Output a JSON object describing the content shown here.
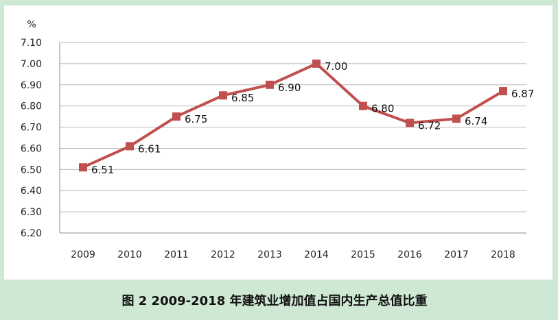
{
  "chart_data": {
    "type": "line",
    "title": "图 2   2009-2018 年建筑业增加值占国内生产总值比重",
    "unit_label": "%",
    "categories": [
      "2009",
      "2010",
      "2011",
      "2012",
      "2013",
      "2014",
      "2015",
      "2016",
      "2017",
      "2018"
    ],
    "values": [
      6.51,
      6.61,
      6.75,
      6.85,
      6.9,
      7.0,
      6.8,
      6.72,
      6.74,
      6.87
    ],
    "value_labels": [
      "6.51",
      "6.61",
      "6.75",
      "6.85",
      "6.90",
      "7.00",
      "6.80",
      "6.72",
      "6.74",
      "6.87"
    ],
    "ylim": [
      6.2,
      7.1
    ],
    "yticks": [
      "6.20",
      "6.30",
      "6.40",
      "6.50",
      "6.60",
      "6.70",
      "6.80",
      "6.90",
      "7.00",
      "7.10"
    ],
    "grid": true,
    "series_color": "#c0504d",
    "background_color": "#cfe8d3",
    "plot_background_color": "#ffffff"
  }
}
